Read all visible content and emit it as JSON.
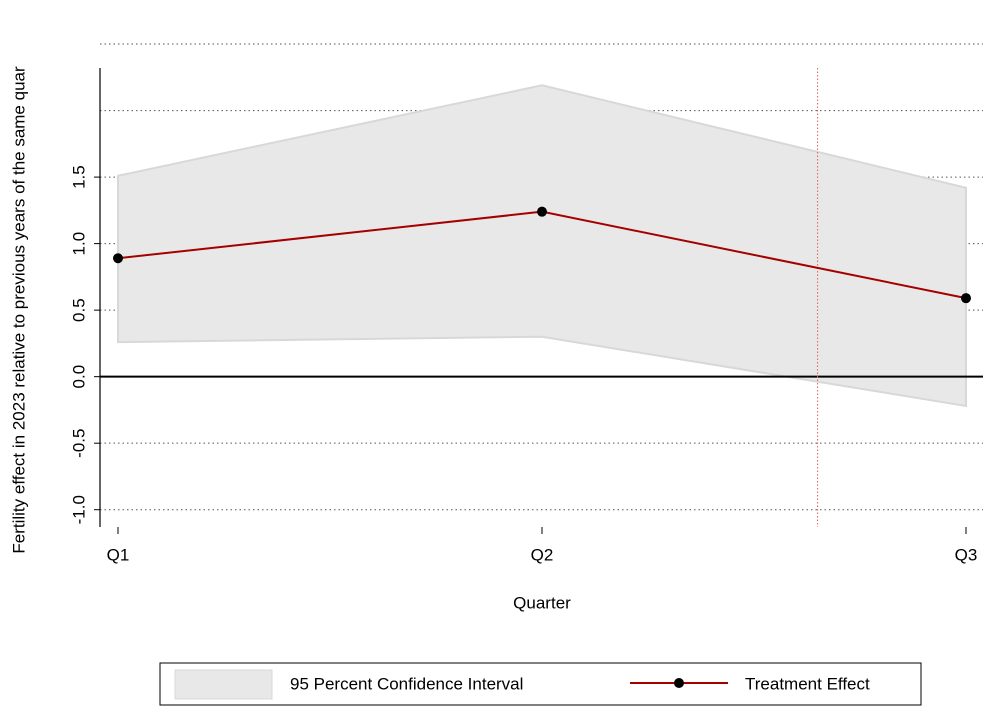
{
  "chart_data": {
    "type": "line",
    "ylabel": "Fertility effect in 2023 relative to previous years of the same quar",
    "xlabel": "Quarter",
    "categories": [
      "Q1",
      "Q2",
      "Q3"
    ],
    "band": {
      "name": "95 Percent Confidence Interval",
      "color": "#e8e8e8",
      "lower": [
        0.26,
        0.3,
        -0.22
      ],
      "upper": [
        1.51,
        2.19,
        1.42
      ]
    },
    "series": [
      {
        "name": "Treatment Effect",
        "color": "#a50000",
        "values": [
          0.89,
          1.24,
          0.59
        ]
      }
    ],
    "xline": {
      "value": 1.65,
      "color": "#e0604a"
    },
    "ylim": [
      -1.13,
      2.32
    ],
    "yticks": [
      {
        "value": -1,
        "label": "-1.0"
      },
      {
        "value": -0.5,
        "label": "-0.5"
      },
      {
        "value": 0,
        "label": "0.0"
      },
      {
        "value": 0.5,
        "label": "0.5"
      },
      {
        "value": 1,
        "label": "1.0"
      },
      {
        "value": 1.5,
        "label": "1.5"
      },
      {
        "value": 2,
        "label": null
      },
      {
        "value": 2.5,
        "label": null
      }
    ],
    "grid": true
  }
}
